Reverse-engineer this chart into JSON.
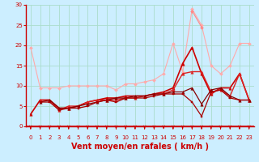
{
  "title": "",
  "xlabel": "Vent moyen/en rafales ( km/h )",
  "ylabel": "",
  "background_color": "#cceeff",
  "grid_color": "#aaddcc",
  "xlim": [
    -0.5,
    23.5
  ],
  "ylim": [
    0,
    30
  ],
  "yticks": [
    0,
    5,
    10,
    15,
    20,
    25,
    30
  ],
  "xticks": [
    0,
    1,
    2,
    3,
    4,
    5,
    6,
    7,
    8,
    9,
    10,
    11,
    12,
    13,
    14,
    15,
    16,
    17,
    18,
    19,
    20,
    21,
    22,
    23
  ],
  "series": [
    {
      "x": [
        0,
        1,
        2,
        3,
        4,
        5,
        6,
        7,
        8,
        9,
        10,
        11,
        12,
        13,
        14,
        15,
        16,
        17,
        18,
        19,
        20,
        21,
        22,
        23
      ],
      "y": [
        19.5,
        9.5,
        9.5,
        9.5,
        10.0,
        10.0,
        10.0,
        10.0,
        10.0,
        9.0,
        10.5,
        10.5,
        11.0,
        11.5,
        13.0,
        20.5,
        13.5,
        29.0,
        25.0,
        15.0,
        13.0,
        15.0,
        20.5,
        20.5
      ],
      "color": "#ffaaaa",
      "marker": "D",
      "markersize": 2,
      "linewidth": 0.8
    },
    {
      "x": [
        0,
        1,
        2,
        3,
        4,
        5,
        6,
        7,
        8,
        9,
        10,
        11,
        12,
        13,
        14,
        15,
        16,
        17,
        18,
        19,
        20,
        21,
        22,
        23
      ],
      "y": [
        null,
        null,
        null,
        null,
        null,
        null,
        null,
        null,
        null,
        null,
        null,
        null,
        null,
        null,
        null,
        null,
        null,
        28.5,
        24.5,
        null,
        null,
        null,
        null,
        null
      ],
      "color": "#ff8888",
      "marker": "D",
      "markersize": 2,
      "linewidth": 0.8
    },
    {
      "x": [
        0,
        1,
        2,
        3,
        4,
        5,
        6,
        7,
        8,
        9,
        10,
        11,
        12,
        13,
        14,
        15,
        16,
        17,
        18,
        19,
        20,
        21,
        22,
        23
      ],
      "y": [
        3.0,
        6.5,
        6.5,
        4.5,
        4.5,
        5.0,
        6.0,
        6.5,
        7.0,
        7.0,
        7.5,
        7.5,
        7.5,
        8.0,
        8.5,
        9.5,
        15.5,
        19.5,
        13.0,
        8.0,
        9.5,
        9.5,
        13.0,
        6.5
      ],
      "color": "#cc0000",
      "marker": "^",
      "markersize": 2.5,
      "linewidth": 1.2
    },
    {
      "x": [
        0,
        1,
        2,
        3,
        4,
        5,
        6,
        7,
        8,
        9,
        10,
        11,
        12,
        13,
        14,
        15,
        16,
        17,
        18,
        19,
        20,
        21,
        22,
        23
      ],
      "y": [
        null,
        6.5,
        6.5,
        4.0,
        5.0,
        5.0,
        6.0,
        6.5,
        6.5,
        6.5,
        7.0,
        7.0,
        7.5,
        8.0,
        8.0,
        9.0,
        13.0,
        13.5,
        13.5,
        8.5,
        9.0,
        7.5,
        13.0,
        6.5
      ],
      "color": "#dd2222",
      "marker": "^",
      "markersize": 2.5,
      "linewidth": 1.0
    },
    {
      "x": [
        0,
        1,
        2,
        3,
        4,
        5,
        6,
        7,
        8,
        9,
        10,
        11,
        12,
        13,
        14,
        15,
        16,
        17,
        18,
        19,
        20,
        21,
        22,
        23
      ],
      "y": [
        null,
        6.0,
        6.5,
        4.5,
        4.5,
        5.0,
        5.5,
        6.0,
        6.5,
        7.0,
        7.0,
        7.5,
        7.5,
        8.0,
        8.0,
        8.5,
        8.5,
        9.5,
        5.5,
        9.0,
        9.5,
        7.5,
        6.5,
        6.5
      ],
      "color": "#880000",
      "marker": "^",
      "markersize": 2.5,
      "linewidth": 0.9
    },
    {
      "x": [
        0,
        1,
        2,
        3,
        4,
        5,
        6,
        7,
        8,
        9,
        10,
        11,
        12,
        13,
        14,
        15,
        16,
        17,
        18,
        19,
        20,
        21,
        22,
        23
      ],
      "y": [
        null,
        6.0,
        6.0,
        4.0,
        4.5,
        4.5,
        5.0,
        6.0,
        6.5,
        6.0,
        7.0,
        7.0,
        7.0,
        7.5,
        8.0,
        8.0,
        8.0,
        6.0,
        2.5,
        8.5,
        9.0,
        7.0,
        6.5,
        6.5
      ],
      "color": "#aa0000",
      "marker": "s",
      "markersize": 2,
      "linewidth": 0.9
    }
  ],
  "xlabel_color": "#cc0000",
  "xlabel_fontsize": 7,
  "tick_color": "#cc0000",
  "tick_fontsize": 5,
  "arrow_color": "#cc0000",
  "spine_color": "#cc0000"
}
